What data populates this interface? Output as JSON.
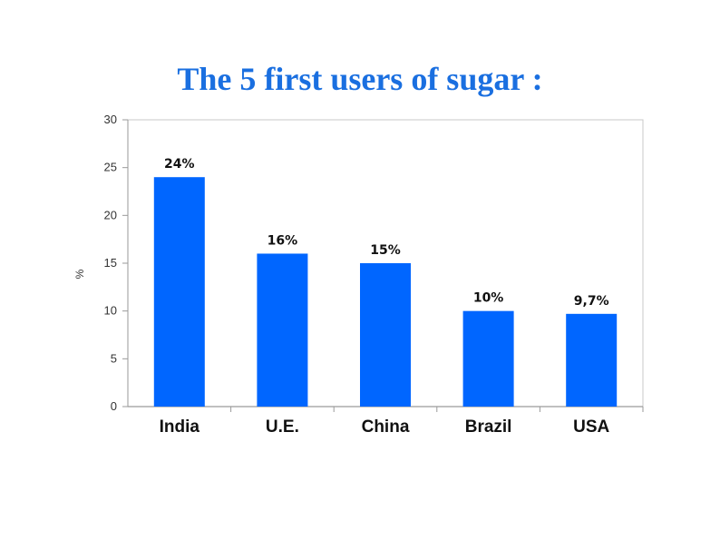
{
  "slide": {
    "title": "The 5 first users of sugar :"
  },
  "chart_data": {
    "type": "bar",
    "title": "",
    "xlabel": "",
    "ylabel": "%",
    "ylim": [
      0,
      30
    ],
    "yticks": [
      0,
      5,
      10,
      15,
      20,
      25,
      30
    ],
    "grid": false,
    "bar_color": "#0066ff",
    "categories": [
      "India",
      "U.E.",
      "China",
      "Brazil",
      "USA"
    ],
    "values": [
      24,
      16,
      15,
      10,
      9.7
    ],
    "data_labels": [
      "24%",
      "16%",
      "15%",
      "10%",
      "9,7%"
    ]
  }
}
